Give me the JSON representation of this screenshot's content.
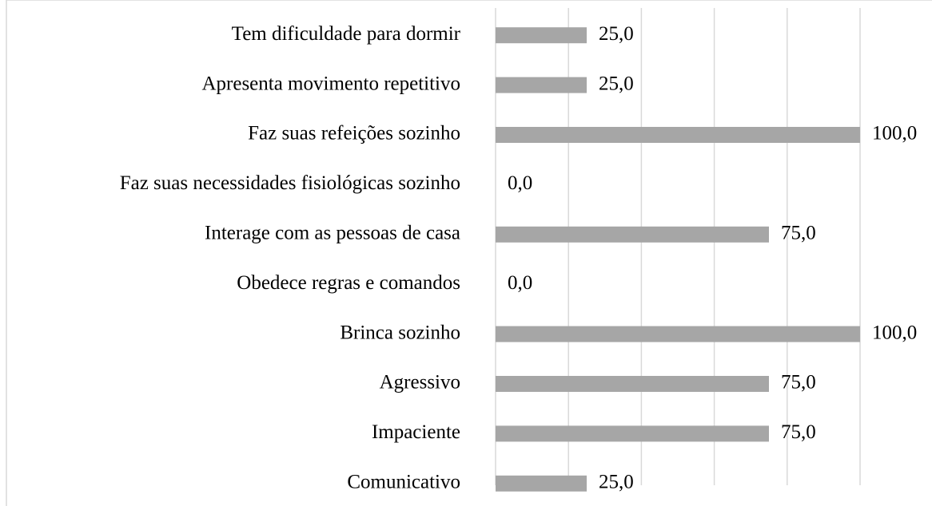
{
  "chart_data": {
    "type": "bar",
    "orientation": "horizontal",
    "categories": [
      "Tem dificuldade para dormir",
      "Apresenta movimento repetitivo",
      "Faz suas refeições sozinho",
      "Faz suas necessidades fisiológicas sozinho",
      "Interage com as pessoas de casa",
      "Obedece regras e comandos",
      "Brinca sozinho",
      "Agressivo",
      "Impaciente",
      "Comunicativo"
    ],
    "values": [
      25,
      25,
      100,
      0,
      75,
      0,
      100,
      75,
      75,
      25
    ],
    "value_labels": [
      "25,0",
      "25,0",
      "100,0",
      "0,0",
      "75,0",
      "0,0",
      "100,0",
      "75,0",
      "75,0",
      "25,0"
    ],
    "color": "#a6a6a6",
    "xlim": [
      0,
      100
    ],
    "xticks": [
      0,
      20,
      40,
      60,
      80,
      100
    ],
    "grid": true
  }
}
